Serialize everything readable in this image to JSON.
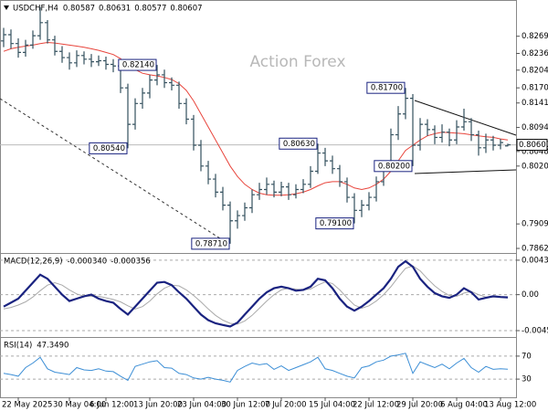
{
  "chart_data": [
    {
      "type": "ohlc",
      "title": "USDCHF,H4",
      "header_values": [
        "0.80587",
        "0.80631",
        "0.80577",
        "0.80607"
      ],
      "watermark": "Action Forex",
      "xlim": [
        -0.5,
        70.125
      ],
      "ylim": [
        0.7855,
        0.8335
      ],
      "grid": false,
      "yticks": [
        {
          "value": 0.8269,
          "label": "0.82690"
        },
        {
          "value": 0.8236,
          "label": "0.82360"
        },
        {
          "value": 0.8204,
          "label": "0.82040"
        },
        {
          "value": 0.817,
          "label": "0.81700"
        },
        {
          "value": 0.8141,
          "label": "0.81410"
        },
        {
          "value": 0.8094,
          "label": "0.80940"
        },
        {
          "value": 0.8048,
          "label": "0.80480"
        },
        {
          "value": 0.802,
          "label": "0.80200"
        },
        {
          "value": 0.7909,
          "label": "0.79090"
        },
        {
          "value": 0.7862,
          "label": "0.78620"
        }
      ],
      "price_label": {
        "value": 0.80607,
        "label": "0.80607"
      },
      "series": [
        {
          "color": "#34505e",
          "ohlc": [
            [
              0.826,
              0.8285,
              0.8248,
              0.8272
            ],
            [
              0.8272,
              0.8282,
              0.8245,
              0.8255
            ],
            [
              0.8255,
              0.8265,
              0.8228,
              0.8238
            ],
            [
              0.8238,
              0.8262,
              0.823,
              0.8252
            ],
            [
              0.8252,
              0.828,
              0.8245,
              0.827
            ],
            [
              0.827,
              0.8325,
              0.8262,
              0.8295
            ],
            [
              0.8295,
              0.83,
              0.8255,
              0.8262
            ],
            [
              0.8262,
              0.827,
              0.8232,
              0.824
            ],
            [
              0.824,
              0.825,
              0.8218,
              0.8228
            ],
            [
              0.8228,
              0.8238,
              0.8205,
              0.8218
            ],
            [
              0.8218,
              0.8242,
              0.821,
              0.8232
            ],
            [
              0.8232,
              0.824,
              0.8215,
              0.8225
            ],
            [
              0.8225,
              0.8235,
              0.821,
              0.822
            ],
            [
              0.822,
              0.8232,
              0.8212,
              0.8222
            ],
            [
              0.8222,
              0.823,
              0.8205,
              0.8215
            ],
            [
              0.8215,
              0.8225,
              0.82,
              0.8212
            ],
            [
              0.8212,
              0.8218,
              0.816,
              0.817
            ],
            [
              0.817,
              0.8178,
              0.8054,
              0.81
            ],
            [
              0.81,
              0.815,
              0.809,
              0.814
            ],
            [
              0.814,
              0.817,
              0.813,
              0.816
            ],
            [
              0.816,
              0.8195,
              0.815,
              0.8185
            ],
            [
              0.8185,
              0.8214,
              0.8175,
              0.8195
            ],
            [
              0.8195,
              0.8205,
              0.817,
              0.818
            ],
            [
              0.818,
              0.819,
              0.8165,
              0.8175
            ],
            [
              0.8175,
              0.8182,
              0.813,
              0.814
            ],
            [
              0.814,
              0.815,
              0.81,
              0.811
            ],
            [
              0.811,
              0.8118,
              0.805,
              0.806
            ],
            [
              0.806,
              0.807,
              0.801,
              0.802
            ],
            [
              0.802,
              0.803,
              0.7985,
              0.7995
            ],
            [
              0.7995,
              0.8005,
              0.796,
              0.797
            ],
            [
              0.797,
              0.798,
              0.7935,
              0.7945
            ],
            [
              0.7945,
              0.7952,
              0.7871,
              0.7915
            ],
            [
              0.7915,
              0.7935,
              0.79,
              0.7925
            ],
            [
              0.7925,
              0.795,
              0.7915,
              0.794
            ],
            [
              0.794,
              0.7975,
              0.793,
              0.7965
            ],
            [
              0.7965,
              0.7988,
              0.7955,
              0.7975
            ],
            [
              0.7975,
              0.7998,
              0.7965,
              0.7985
            ],
            [
              0.7985,
              0.7992,
              0.796,
              0.797
            ],
            [
              0.797,
              0.799,
              0.7962,
              0.798
            ],
            [
              0.798,
              0.7988,
              0.7955,
              0.7965
            ],
            [
              0.7965,
              0.7985,
              0.7958,
              0.7975
            ],
            [
              0.7975,
              0.7995,
              0.7968,
              0.7985
            ],
            [
              0.7985,
              0.802,
              0.7978,
              0.801
            ],
            [
              0.801,
              0.8063,
              0.8005,
              0.8045
            ],
            [
              0.8045,
              0.8055,
              0.802,
              0.803
            ],
            [
              0.803,
              0.804,
              0.8005,
              0.8015
            ],
            [
              0.8015,
              0.8022,
              0.798,
              0.799
            ],
            [
              0.799,
              0.7998,
              0.795,
              0.796
            ],
            [
              0.796,
              0.7968,
              0.791,
              0.7935
            ],
            [
              0.7935,
              0.7955,
              0.7922,
              0.7945
            ],
            [
              0.7945,
              0.797,
              0.7935,
              0.796
            ],
            [
              0.796,
              0.8,
              0.7952,
              0.799
            ],
            [
              0.799,
              0.803,
              0.7982,
              0.802
            ],
            [
              0.802,
              0.8092,
              0.8012,
              0.808
            ],
            [
              0.808,
              0.8135,
              0.807,
              0.812
            ],
            [
              0.812,
              0.817,
              0.811,
              0.815
            ],
            [
              0.815,
              0.8158,
              0.802,
              0.806
            ],
            [
              0.806,
              0.8112,
              0.805,
              0.81
            ],
            [
              0.81,
              0.811,
              0.8078,
              0.809
            ],
            [
              0.809,
              0.8098,
              0.8062,
              0.8075
            ],
            [
              0.8075,
              0.81,
              0.8065,
              0.8085
            ],
            [
              0.8085,
              0.8092,
              0.8058,
              0.807
            ],
            [
              0.807,
              0.8108,
              0.8062,
              0.8095
            ],
            [
              0.8095,
              0.813,
              0.8088,
              0.8105
            ],
            [
              0.8105,
              0.8112,
              0.8068,
              0.808
            ],
            [
              0.808,
              0.8088,
              0.804,
              0.8055
            ],
            [
              0.8055,
              0.8082,
              0.8045,
              0.807
            ],
            [
              0.807,
              0.8078,
              0.805,
              0.806
            ],
            [
              0.806,
              0.8072,
              0.8052,
              0.8065
            ],
            [
              0.80587,
              0.80631,
              0.80577,
              0.80607
            ]
          ]
        },
        {
          "color": "#e8453c",
          "values": [
            0.824,
            0.8245,
            0.8248,
            0.825,
            0.8252,
            0.8255,
            0.8257,
            0.8256,
            0.8254,
            0.8252,
            0.825,
            0.8248,
            0.8245,
            0.8242,
            0.8238,
            0.8234,
            0.8226,
            0.8214,
            0.8205,
            0.8198,
            0.8195,
            0.8193,
            0.819,
            0.8186,
            0.8178,
            0.8165,
            0.8145,
            0.812,
            0.8095,
            0.807,
            0.8045,
            0.802,
            0.8,
            0.7985,
            0.7975,
            0.7968,
            0.7965,
            0.7964,
            0.7964,
            0.7965,
            0.7967,
            0.797,
            0.7975,
            0.7982,
            0.7988,
            0.799,
            0.799,
            0.7985,
            0.7978,
            0.7975,
            0.7978,
            0.7985,
            0.7995,
            0.801,
            0.803,
            0.805,
            0.806,
            0.807,
            0.8078,
            0.8082,
            0.8085,
            0.8084,
            0.8083,
            0.8082,
            0.808,
            0.8078,
            0.8076,
            0.8075,
            0.8072,
            0.807
          ]
        }
      ],
      "annotations": [
        {
          "label": "0.82140",
          "index": 21,
          "value": 0.8214
        },
        {
          "label": "0.80540",
          "index": 17,
          "value": 0.8054
        },
        {
          "label": "0.78710",
          "index": 31,
          "value": 0.7871
        },
        {
          "label": "0.80630",
          "index": 43,
          "value": 0.8063
        },
        {
          "label": "0.79100",
          "index": 48,
          "value": 0.791
        },
        {
          "label": "0.81700",
          "index": 55,
          "value": 0.817
        },
        {
          "label": "0.80200",
          "index": 56,
          "value": 0.802
        }
      ]
    },
    {
      "type": "line",
      "title": "MACD(12,26,9)",
      "header_values": [
        "-0.000340",
        "-0.000356"
      ],
      "xlim": [
        -0.5,
        70.125
      ],
      "ylim": [
        -0.0052,
        0.005
      ],
      "grid": true,
      "yticks": [
        {
          "value": 0.004325,
          "label": "0.004325"
        },
        {
          "value": 0,
          "label": "0.00"
        },
        {
          "value": -0.004511,
          "label": "-0.004511"
        }
      ],
      "series": [
        {
          "color": "#aaaaaa",
          "width": 1,
          "values": [
            -0.0018,
            -0.0016,
            -0.0013,
            -0.0009,
            -0.0003,
            0.0005,
            0.0012,
            0.0015,
            0.0012,
            0.0006,
            0.0001,
            -0.0002,
            -0.0002,
            -0.0002,
            -0.0004,
            -0.0006,
            -0.0009,
            -0.0014,
            -0.0018,
            -0.0015,
            -0.0008,
            0.0001,
            0.0008,
            0.0012,
            0.0011,
            0.0006,
            -0.0001,
            -0.0009,
            -0.0018,
            -0.0026,
            -0.0032,
            -0.0036,
            -0.0037,
            -0.0033,
            -0.0026,
            -0.0017,
            -0.0008,
            0,
            0.0006,
            0.0008,
            0.0007,
            0.0006,
            0.0007,
            0.0012,
            0.0016,
            0.0014,
            0.0006,
            -0.0004,
            -0.0013,
            -0.0017,
            -0.0014,
            -0.0008,
            0,
            0.001,
            0.0022,
            0.0033,
            0.0036,
            0.003,
            0.002,
            0.0011,
            0.0004,
            -0.0001,
            -0.0002,
            0.0002,
            0.0004,
            0,
            -0.0003,
            -0.0003,
            -0.0003,
            -0.000356
          ]
        },
        {
          "color": "#1a2380",
          "width": 2.2,
          "values": [
            -0.0015,
            -0.001,
            -0.0005,
            0.0005,
            0.0015,
            0.0025,
            0.002,
            0.001,
            0,
            -0.0008,
            -0.0005,
            -0.0002,
            0,
            -0.0005,
            -0.0008,
            -0.001,
            -0.0018,
            -0.0025,
            -0.0015,
            -0.0005,
            0.0005,
            0.0015,
            0.0016,
            0.0012,
            0.0003,
            -0.0005,
            -0.0015,
            -0.0025,
            -0.0032,
            -0.0036,
            -0.0038,
            -0.004,
            -0.0035,
            -0.0025,
            -0.0015,
            -0.0005,
            0.0003,
            0.0008,
            0.001,
            0.0008,
            0.0005,
            0.0006,
            0.001,
            0.002,
            0.0018,
            0.0008,
            -0.0005,
            -0.0015,
            -0.002,
            -0.0015,
            -0.0008,
            0,
            0.0008,
            0.002,
            0.0035,
            0.0042,
            0.0035,
            0.002,
            0.001,
            0.0002,
            -0.0002,
            -0.0004,
            0,
            0.0008,
            0.0003,
            -0.0006,
            -0.0004,
            -0.0002,
            -0.0003,
            -0.00034
          ]
        }
      ]
    },
    {
      "type": "line",
      "title": "RSI(14)",
      "header_values": [
        "47.3490"
      ],
      "xlim": [
        -0.5,
        70.125
      ],
      "ylim": [
        0,
        100
      ],
      "grid": true,
      "yticks": [
        70,
        30
      ],
      "series": [
        {
          "color": "#3d8fd6",
          "width": 1,
          "values": [
            40,
            38,
            35,
            50,
            58,
            68,
            48,
            42,
            40,
            38,
            50,
            46,
            45,
            48,
            44,
            43,
            35,
            28,
            52,
            56,
            60,
            62,
            50,
            49,
            40,
            38,
            32,
            30,
            33,
            30,
            28,
            25,
            45,
            52,
            58,
            55,
            57,
            47,
            53,
            45,
            50,
            55,
            60,
            68,
            48,
            45,
            40,
            35,
            32,
            50,
            53,
            60,
            63,
            70,
            72,
            75,
            40,
            60,
            55,
            50,
            56,
            48,
            58,
            66,
            50,
            42,
            52,
            47,
            48,
            47.349
          ]
        }
      ],
      "xticks": [
        {
          "value": 2,
          "label": "22 May 2025"
        },
        {
          "value": 9,
          "label": "30 May 04:00"
        },
        {
          "value": 14,
          "label": "6 Jun 12:00"
        },
        {
          "value": 20,
          "label": "13 Jun 20:00"
        },
        {
          "value": 26,
          "label": "23 Jun 04:00"
        },
        {
          "value": 32,
          "label": "30 Jun 12:00"
        },
        {
          "value": 38,
          "label": "7 Jul 20:00"
        },
        {
          "value": 44,
          "label": "15 Jul 04:00"
        },
        {
          "value": 50,
          "label": "22 Jul 12:00"
        },
        {
          "value": 56,
          "label": "29 Jul 20:00"
        },
        {
          "value": 62,
          "label": "6 Aug 04:00"
        },
        {
          "value": 68,
          "label": "13 Aug 12:00"
        }
      ]
    }
  ]
}
